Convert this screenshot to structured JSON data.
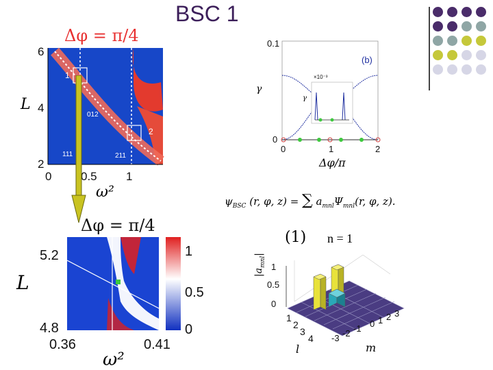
{
  "slide": {
    "title": "BSC 1"
  },
  "decor": {
    "dot_colors": [
      "#4a2c6a",
      "#8fa6a5",
      "#c5c83a",
      "#d6d6e6"
    ]
  },
  "top_left_plot": {
    "heading": "Δφ = π/4",
    "ylabel": "L",
    "xlabel": "ω²",
    "yticks": [
      "6",
      "4",
      "2"
    ],
    "xticks": [
      "0",
      "0.5",
      "1"
    ],
    "region_labels": [
      "1",
      "2",
      "012",
      "111",
      "211"
    ],
    "colors": {
      "low": "#1040c8",
      "high": "#e02020"
    }
  },
  "bottom_left_plot": {
    "heading": "Δφ = π/4",
    "ylabel": "L",
    "xlabel": "ω²",
    "yticks": [
      "5.2",
      "4.8"
    ],
    "xticks": [
      "0.36",
      "0.41"
    ],
    "colorbar_ticks": [
      "1",
      "0.5",
      "0"
    ]
  },
  "right_plot": {
    "panel_label": "(b)",
    "ylabel": "γ",
    "xlabel": "Δφ/π",
    "yticks": [
      "0.1",
      "0"
    ],
    "xticks": [
      "0",
      "1",
      "2"
    ],
    "inset_scale": "×10⁻³",
    "inset_ylabel": "γ"
  },
  "equation": {
    "lhs": "ψ",
    "sub": "BSC",
    "args": "(r, φ, z) =",
    "sum": "∑",
    "rhs": "a",
    "rhs_sub": "mnl",
    "psi": "Ψ",
    "psi_sub": "mnl",
    "psi_args": "(r, φ, z)."
  },
  "bar_plot": {
    "panel_label": "(1)",
    "n_label": "n = 1",
    "zlabel": "|a",
    "zlabel_sub": "mnl",
    "zlabel_end": "|",
    "zticks": [
      "1",
      "0.5",
      "0"
    ],
    "l_ticks": [
      "1",
      "2",
      "3",
      "4"
    ],
    "m_ticks": [
      "-3",
      "-2",
      "-1",
      "0",
      "1",
      "2",
      "3"
    ],
    "xlabel": "l",
    "ylabel": "m"
  }
}
